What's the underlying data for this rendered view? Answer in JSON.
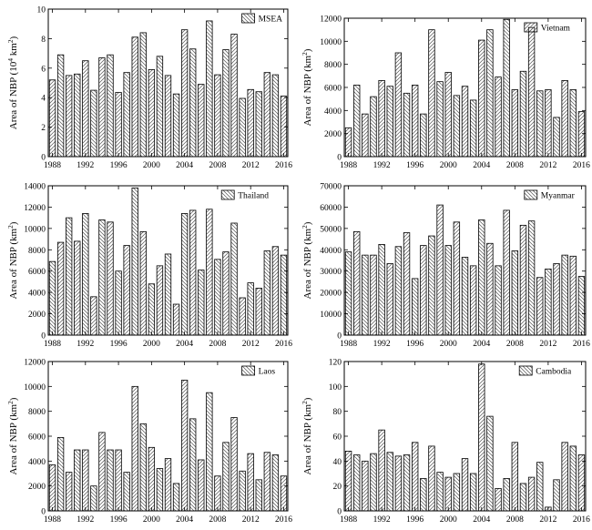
{
  "chart_data": [
    {
      "type": "bar",
      "ylabel": "Area of NBP (10",
      "ylabel_sup": "4",
      "ylabel_unit": " km",
      "ylabel_sup2": "2",
      "ylabel_tail": ")",
      "legend": "MSEA",
      "ylim": [
        0,
        10
      ],
      "yticks": [
        0,
        2,
        4,
        6,
        8,
        10
      ],
      "yticklabels": [
        "0",
        "2",
        "4",
        "6",
        "8",
        "10"
      ],
      "xticks": [
        "1988",
        "1992",
        "1996",
        "2000",
        "2004",
        "2008",
        "2012",
        "2016"
      ],
      "years": [
        1988,
        1989,
        1990,
        1991,
        1992,
        1993,
        1994,
        1995,
        1996,
        1997,
        1998,
        1999,
        2000,
        2001,
        2002,
        2003,
        2004,
        2005,
        2006,
        2007,
        2008,
        2009,
        2010,
        2011,
        2012,
        2013,
        2014,
        2015,
        2016
      ],
      "values": [
        5.2,
        6.9,
        5.5,
        5.6,
        6.5,
        4.5,
        6.7,
        6.9,
        4.35,
        5.7,
        8.1,
        8.4,
        5.9,
        6.8,
        5.5,
        4.25,
        8.6,
        7.3,
        4.9,
        9.2,
        5.55,
        7.25,
        8.3,
        3.95,
        4.55,
        4.4,
        5.7,
        5.55,
        4.1
      ],
      "hatch": [
        "s",
        "b",
        "s",
        "b",
        "s",
        "b",
        "s",
        "b",
        "s",
        "b",
        "s",
        "b",
        "s",
        "b",
        "s",
        "b",
        "s",
        "b",
        "s",
        "b",
        "s",
        "b",
        "s",
        "b",
        "s",
        "b",
        "s",
        "b",
        "s"
      ]
    },
    {
      "type": "bar",
      "ylabel": "Area of NBP (km",
      "ylabel_sup": "2",
      "ylabel_tail": ")",
      "legend": "Vietnam",
      "ylim": [
        0,
        12000
      ],
      "yticks": [
        0,
        2000,
        4000,
        6000,
        8000,
        10000,
        12000
      ],
      "yticklabels": [
        "0",
        "2000",
        "4000",
        "6000",
        "8000",
        "10000",
        "12000"
      ],
      "xticks": [
        "1988",
        "1992",
        "1996",
        "2000",
        "2004",
        "2008",
        "2012",
        "2016"
      ],
      "years": [
        1988,
        1989,
        1990,
        1991,
        1992,
        1993,
        1994,
        1995,
        1996,
        1997,
        1998,
        1999,
        2000,
        2001,
        2002,
        2003,
        2004,
        2005,
        2006,
        2007,
        2008,
        2009,
        2010,
        2011,
        2012,
        2013,
        2014,
        2015,
        2016
      ],
      "values": [
        2500,
        6200,
        3700,
        5200,
        6600,
        6100,
        9000,
        5500,
        6200,
        3700,
        11000,
        6500,
        7300,
        5300,
        6100,
        4900,
        10100,
        11000,
        6900,
        11900,
        5800,
        7400,
        11200,
        5700,
        5800,
        3400,
        6600,
        5800,
        3900
      ],
      "hatch": [
        "s",
        "b",
        "s",
        "b",
        "s",
        "b",
        "s",
        "b",
        "s",
        "b",
        "s",
        "b",
        "s",
        "b",
        "s",
        "b",
        "s",
        "b",
        "s",
        "b",
        "s",
        "b",
        "s",
        "b",
        "s",
        "b",
        "s",
        "b",
        "s"
      ]
    },
    {
      "type": "bar",
      "ylabel": "Area of NBP (km",
      "ylabel_sup": "2",
      "ylabel_tail": ")",
      "legend": "Thailand",
      "ylim": [
        0,
        14000
      ],
      "yticks": [
        0,
        2000,
        4000,
        6000,
        8000,
        10000,
        12000,
        14000
      ],
      "yticklabels": [
        "0",
        "2000",
        "4000",
        "6000",
        "8000",
        "10000",
        "12000",
        "14000"
      ],
      "xticks": [
        "1988",
        "1992",
        "1996",
        "2000",
        "2004",
        "2008",
        "2012",
        "2016"
      ],
      "years": [
        1988,
        1989,
        1990,
        1991,
        1992,
        1993,
        1994,
        1995,
        1996,
        1997,
        1998,
        1999,
        2000,
        2001,
        2002,
        2003,
        2004,
        2005,
        2006,
        2007,
        2008,
        2009,
        2010,
        2011,
        2012,
        2013,
        2014,
        2015,
        2016
      ],
      "values": [
        6900,
        8700,
        11000,
        8800,
        11400,
        3600,
        10800,
        10600,
        6000,
        8400,
        13800,
        9700,
        4800,
        6500,
        7600,
        2900,
        11400,
        11700,
        6100,
        11800,
        7100,
        7800,
        10500,
        3500,
        4900,
        4400,
        7900,
        8300,
        7500
      ],
      "hatch": [
        "b",
        "s",
        "b",
        "s",
        "b",
        "s",
        "b",
        "s",
        "b",
        "s",
        "b",
        "s",
        "b",
        "s",
        "b",
        "s",
        "b",
        "s",
        "b",
        "s",
        "b",
        "s",
        "b",
        "s",
        "b",
        "s",
        "b",
        "s",
        "b"
      ]
    },
    {
      "type": "bar",
      "ylabel": "Area of NBP (km",
      "ylabel_sup": "2",
      "ylabel_tail": ")",
      "legend": "Myanmar",
      "ylim": [
        0,
        70000
      ],
      "yticks": [
        0,
        10000,
        20000,
        30000,
        40000,
        50000,
        60000,
        70000
      ],
      "yticklabels": [
        "0",
        "10000",
        "20000",
        "30000",
        "40000",
        "50000",
        "60000",
        "70000"
      ],
      "xticks": [
        "1988",
        "1992",
        "1996",
        "2000",
        "2004",
        "2008",
        "2012",
        "2016"
      ],
      "years": [
        1988,
        1989,
        1990,
        1991,
        1992,
        1993,
        1994,
        1995,
        1996,
        1997,
        1998,
        1999,
        2000,
        2001,
        2002,
        2003,
        2004,
        2005,
        2006,
        2007,
        2008,
        2009,
        2010,
        2011,
        2012,
        2013,
        2014,
        2015,
        2016
      ],
      "values": [
        39000,
        48500,
        37500,
        37500,
        42500,
        33500,
        41500,
        48000,
        26500,
        42000,
        46500,
        61000,
        42000,
        53000,
        36500,
        32500,
        54000,
        43000,
        32500,
        58500,
        39500,
        51500,
        53500,
        27000,
        31000,
        33500,
        37500,
        37000,
        27500
      ],
      "hatch": [
        "b",
        "s",
        "b",
        "s",
        "b",
        "s",
        "b",
        "s",
        "b",
        "s",
        "b",
        "s",
        "b",
        "s",
        "b",
        "s",
        "b",
        "s",
        "b",
        "s",
        "b",
        "s",
        "b",
        "s",
        "b",
        "s",
        "b",
        "s",
        "b"
      ]
    },
    {
      "type": "bar",
      "ylabel": "Area of NBP (km",
      "ylabel_sup": "2",
      "ylabel_tail": ")",
      "legend": "Laos",
      "ylim": [
        0,
        12000
      ],
      "yticks": [
        0,
        2000,
        4000,
        6000,
        8000,
        10000,
        12000
      ],
      "yticklabels": [
        "0",
        "2000",
        "4000",
        "6000",
        "8000",
        "10000",
        "12000"
      ],
      "xticks": [
        "1988",
        "1992",
        "1996",
        "2000",
        "2004",
        "2008",
        "2012",
        "2016"
      ],
      "years": [
        1988,
        1989,
        1990,
        1991,
        1992,
        1993,
        1994,
        1995,
        1996,
        1997,
        1998,
        1999,
        2000,
        2001,
        2002,
        2003,
        2004,
        2005,
        2006,
        2007,
        2008,
        2009,
        2010,
        2011,
        2012,
        2013,
        2014,
        2015,
        2016
      ],
      "values": [
        3700,
        5900,
        3100,
        4900,
        4900,
        2000,
        6300,
        4900,
        4900,
        3100,
        10000,
        7000,
        5100,
        3400,
        4200,
        2200,
        10500,
        7400,
        4100,
        9500,
        2800,
        5500,
        7500,
        3200,
        4600,
        2500,
        4700,
        4500,
        2800
      ],
      "hatch": [
        "s",
        "b",
        "s",
        "b",
        "s",
        "b",
        "s",
        "b",
        "s",
        "b",
        "s",
        "b",
        "s",
        "b",
        "s",
        "b",
        "s",
        "b",
        "s",
        "b",
        "s",
        "b",
        "s",
        "b",
        "s",
        "b",
        "s",
        "b",
        "s"
      ]
    },
    {
      "type": "bar",
      "ylabel": "Area of NBP (km",
      "ylabel_sup": "2",
      "ylabel_tail": ")",
      "legend": "Cambodia",
      "ylim": [
        0,
        120
      ],
      "yticks": [
        0,
        20,
        40,
        60,
        80,
        100,
        120
      ],
      "yticklabels": [
        "0",
        "20",
        "40",
        "60",
        "80",
        "100",
        "120"
      ],
      "xticks": [
        "1988",
        "1992",
        "1996",
        "2000",
        "2004",
        "2008",
        "2012",
        "2016"
      ],
      "years": [
        1988,
        1989,
        1990,
        1991,
        1992,
        1993,
        1994,
        1995,
        1996,
        1997,
        1998,
        1999,
        2000,
        2001,
        2002,
        2003,
        2004,
        2005,
        2006,
        2007,
        2008,
        2009,
        2010,
        2011,
        2012,
        2013,
        2014,
        2015,
        2016
      ],
      "values": [
        48,
        45,
        40,
        46,
        65,
        47,
        44,
        45,
        55,
        26,
        52,
        31,
        27,
        30,
        42,
        30,
        118,
        76,
        18,
        26,
        55,
        22,
        27,
        39,
        3,
        25,
        55,
        52,
        45
      ],
      "hatch": [
        "s",
        "b",
        "s",
        "b",
        "s",
        "b",
        "s",
        "b",
        "s",
        "b",
        "s",
        "b",
        "s",
        "b",
        "s",
        "b",
        "s",
        "b",
        "s",
        "b",
        "s",
        "b",
        "s",
        "b",
        "s",
        "b",
        "s",
        "b",
        "s"
      ]
    }
  ]
}
